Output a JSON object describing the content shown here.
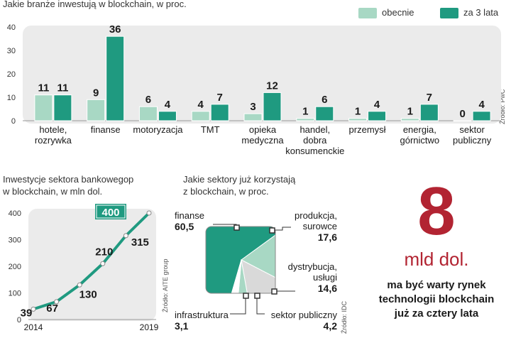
{
  "colors": {
    "current": "#a8d8c4",
    "future": "#1f9a80",
    "panel": "#ebebeb",
    "line": "#1f9a80",
    "accent": "#b22432",
    "pie_future": "#1f9a80",
    "pie_light": "#a8d8c4",
    "pie_gray": "#d9d9d9"
  },
  "chart_data": [
    {
      "type": "bar",
      "title": "Jakie branże inwestują w blockchain, w proc.",
      "source": "Źródło: PwC",
      "ylim": [
        0,
        40
      ],
      "yticks": [
        "0",
        "10",
        "20",
        "30",
        "40"
      ],
      "categories": [
        "hotele,\nrozrywka",
        "finanse",
        "motoryzacja",
        "TMT",
        "opieka\nmedyczna",
        "handel,\ndobra\nkonsumenckie",
        "przemysł",
        "energia,\ngórnictwo",
        "sektor\npubliczny"
      ],
      "series": [
        {
          "name": "obecnie",
          "values": [
            11,
            9,
            6,
            4,
            3,
            1,
            1,
            1,
            0
          ]
        },
        {
          "name": "za 3 lata",
          "values": [
            11,
            36,
            4,
            7,
            12,
            6,
            4,
            7,
            4
          ]
        }
      ]
    },
    {
      "type": "line",
      "title": "Inwestycje sektora bankowegop\nw blockchain, w mln dol.",
      "source": "Źródło: AITE group",
      "x": [
        2014,
        2015,
        2016,
        2017,
        2018,
        2019
      ],
      "values": [
        39,
        67,
        130,
        210,
        315,
        400
      ],
      "xticks": [
        "2014",
        "2019"
      ],
      "yticks": [
        "0",
        "100",
        "200",
        "300",
        "400"
      ],
      "ylim": [
        0,
        400
      ]
    },
    {
      "type": "pie",
      "title": "Jakie sektory już korzystają\nz blockchain, w proc.",
      "source": "Źródło: IDC",
      "slices": [
        {
          "label": "finanse",
          "value": 60.5,
          "display": "60,5"
        },
        {
          "label": "produkcja,\nsurowce",
          "value": 17.6,
          "display": "17,6"
        },
        {
          "label": "dystrybucja,\nusługi",
          "value": 14.6,
          "display": "14,6"
        },
        {
          "label": "sektor publiczny",
          "value": 4.2,
          "display": "4,2"
        },
        {
          "label": "infrastruktura",
          "value": 3.1,
          "display": "3,1"
        }
      ]
    }
  ],
  "highlight": {
    "number": "8",
    "unit": "mld dol.",
    "description": "ma być warty rynek\ntechnologii blockchain\njuż za cztery lata"
  }
}
